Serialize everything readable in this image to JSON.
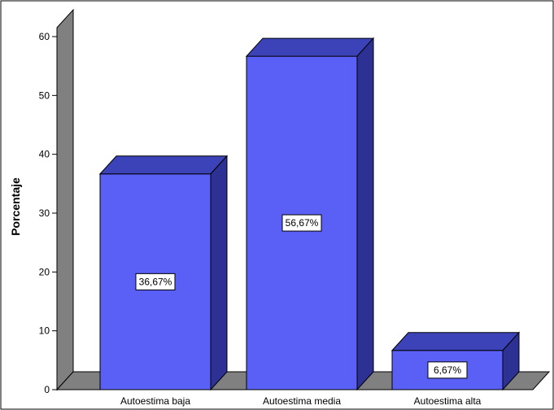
{
  "chart_data": {
    "type": "bar",
    "style": "3d",
    "categories": [
      "Autoestima baja",
      "Autoestima media",
      "Autoestima alta"
    ],
    "values": [
      36.67,
      56.67,
      6.67
    ],
    "data_labels": [
      "36,67%",
      "56,67%",
      "6,67%"
    ],
    "title": "",
    "xlabel": "",
    "ylabel": "Porcentaje",
    "ylim": [
      0,
      60
    ],
    "yticks": [
      0,
      10,
      20,
      30,
      40,
      50,
      60
    ],
    "ytick_labels": [
      "0",
      "10",
      "20",
      "30",
      "40",
      "50",
      "60"
    ],
    "grid": false,
    "legend": "none",
    "colors": {
      "bar_front": "#5a5ff5",
      "bar_top": "#3c42b8",
      "bar_side": "#2c3193",
      "wall_side": "#808080",
      "floor": "#808080",
      "outline": "#000000",
      "background": "#ffffff"
    }
  }
}
